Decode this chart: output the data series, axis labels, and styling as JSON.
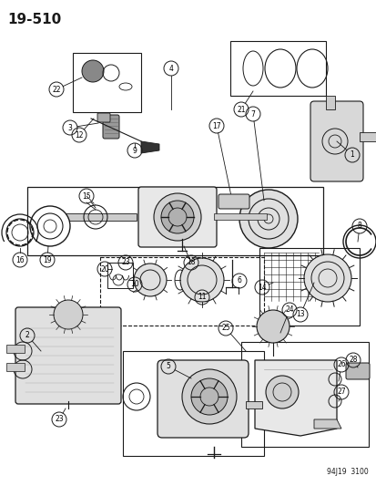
{
  "page_ref": "19-510",
  "part_ref": "94J19  3100",
  "bg_color": "#ffffff",
  "line_color": "#1a1a1a",
  "fig_width": 4.14,
  "fig_height": 5.33,
  "dpi": 100,
  "title_fontsize": 11,
  "ref_fontsize": 5.5
}
